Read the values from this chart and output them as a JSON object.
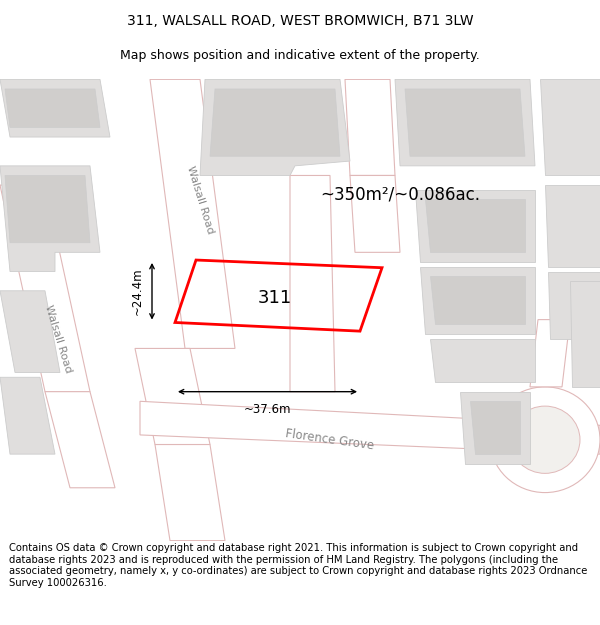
{
  "title": "311, WALSALL ROAD, WEST BROMWICH, B71 3LW",
  "subtitle": "Map shows position and indicative extent of the property.",
  "area_label": "~350m²/~0.086ac.",
  "plot_number": "311",
  "dim_width": "~37.6m",
  "dim_height": "~24.4m",
  "road_label1": "Walsall Road",
  "road_label2": "Walsall Road",
  "road_label3": "Florence Grove",
  "footer_text": "Contains OS data © Crown copyright and database right 2021. This information is subject to Crown copyright and database rights 2023 and is reproduced with the permission of HM Land Registry. The polygons (including the associated geometry, namely x, y co-ordinates) are subject to Crown copyright and database rights 2023 Ordnance Survey 100026316.",
  "map_bg": "#f2f0ed",
  "plot_color": "#ff0000",
  "road_fill": "#ffffff",
  "road_line": "#e0b8b8",
  "building_fill": "#e0dedd",
  "building_outline": "#cccccc",
  "building_inner": "#d0cecc",
  "title_fontsize": 10,
  "subtitle_fontsize": 9,
  "footer_fontsize": 7.2,
  "label_color": "#888888"
}
